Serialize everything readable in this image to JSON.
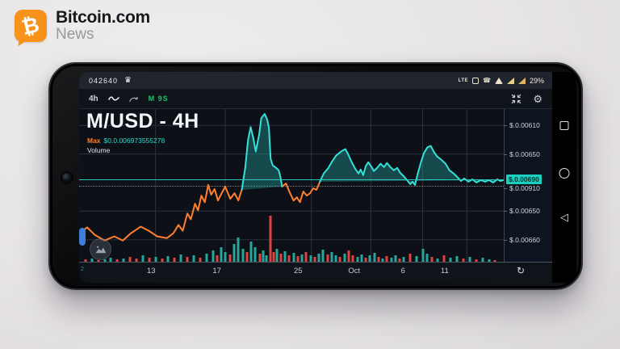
{
  "page": {
    "background": "#e9e6e8"
  },
  "brand": {
    "name": "Bitcoin.com",
    "subtitle": "News",
    "logo_glyph": "₿",
    "logo_color": "#f7931a"
  },
  "phone": {
    "status_bar": {
      "left_text": "042640",
      "crown_glyph": "♛",
      "lte_label": "LTE",
      "wifi_call_glyph": "☎",
      "battery": "29%"
    },
    "toolbar": {
      "interval_label": "4h",
      "indicator_label": "M 9S",
      "gear_glyph": "⚙"
    },
    "nav": {
      "back_glyph": "◁"
    }
  },
  "chart": {
    "title": "M/USD - 4H",
    "max_label": "Max",
    "max_value": "$0.0.006973555278",
    "volume_label": "Volume",
    "refresh_glyph": "↻"
  },
  "chart_data": {
    "type": "line",
    "title": "M/USD - 4H",
    "legend": [
      "Max $0.0.006973555278",
      "Volume"
    ],
    "y_axis_labels": [
      {
        "text": "$.0.00610",
        "y_pct": 10.7,
        "highlight": false
      },
      {
        "text": "$.0.00650",
        "y_pct": 29.4,
        "highlight": false
      },
      {
        "text": "$.0.00690",
        "y_pct": 46.0,
        "highlight": true
      },
      {
        "text": "$.0.00910",
        "y_pct": 51.8,
        "highlight": false
      },
      {
        "text": "$.0.00650",
        "y_pct": 66.8,
        "highlight": false
      },
      {
        "text": "$.0.00660",
        "y_pct": 85.6,
        "highlight": false
      }
    ],
    "x_axis_labels": [
      {
        "text": "2",
        "x_pct": 0.8,
        "dim": true
      },
      {
        "text": "13",
        "x_pct": 18.0,
        "dim": false
      },
      {
        "text": "17",
        "x_pct": 34.4,
        "dim": false
      },
      {
        "text": "25",
        "x_pct": 54.7,
        "dim": false
      },
      {
        "text": "Oct",
        "x_pct": 68.7,
        "dim": false
      },
      {
        "text": "6",
        "x_pct": 80.9,
        "dim": false
      },
      {
        "text": "11",
        "x_pct": 91.3,
        "dim": false
      }
    ],
    "current_price_line_y_pct": 46.0,
    "dotted_line_y_pct": 50.5,
    "grid": {
      "h_pct": [
        10.7,
        29.4,
        66.8,
        85.6
      ],
      "v_pct": [
        18.0,
        34.4,
        54.7,
        68.7,
        80.9,
        91.3
      ]
    },
    "colors": {
      "background": "#0d1117",
      "orange_line": "#ff7f2e",
      "teal_line": "#35e0d8",
      "teal_fill": "rgba(34,158,155,0.40)",
      "price_line": "#2cc9bd",
      "grid": "#2b3340",
      "volume_green": "#26a69a",
      "volume_red": "#e0433f",
      "highlight_bg": "#19cfc0"
    },
    "series": [
      {
        "name": "price-orange-left",
        "color": "#ff7f2e",
        "fill": false,
        "points": [
          [
            0,
            81.3
          ],
          [
            1.9,
            77.5
          ],
          [
            3.7,
            82.4
          ],
          [
            6,
            86.1
          ],
          [
            8.3,
            83.4
          ],
          [
            10.3,
            86.1
          ],
          [
            12.2,
            81.3
          ],
          [
            14.5,
            77
          ],
          [
            16.4,
            79.7
          ],
          [
            18.4,
            83.4
          ],
          [
            20.7,
            84.5
          ],
          [
            22.2,
            81.3
          ],
          [
            23.4,
            75.9
          ],
          [
            24.4,
            79.7
          ],
          [
            25.5,
            68.4
          ],
          [
            26.3,
            72.2
          ],
          [
            27.3,
            62
          ],
          [
            28,
            66.3
          ],
          [
            28.8,
            56.7
          ],
          [
            29.6,
            61
          ],
          [
            30.4,
            49.7
          ],
          [
            31.1,
            56.1
          ],
          [
            31.9,
            52.4
          ],
          [
            32.7,
            59.9
          ],
          [
            33.7,
            54.5
          ],
          [
            34.4,
            50.8
          ],
          [
            35.6,
            58.8
          ],
          [
            36.6,
            55.1
          ],
          [
            37.5,
            59.9
          ],
          [
            38.3,
            52.9
          ]
        ]
      },
      {
        "name": "price-orange-mid",
        "color": "#ff7f2e",
        "fill": false,
        "points": [
          [
            47.8,
            50.8
          ],
          [
            48.7,
            48.7
          ],
          [
            49.5,
            54
          ],
          [
            50.5,
            59.9
          ],
          [
            51.3,
            57.8
          ],
          [
            52,
            61
          ],
          [
            52.8,
            54
          ],
          [
            53.6,
            56.7
          ],
          [
            54.4,
            55.1
          ],
          [
            55.1,
            51.9
          ],
          [
            55.9,
            52.9
          ],
          [
            56.7,
            47.6
          ]
        ]
      },
      {
        "name": "price-teal-spike",
        "color": "#35e0d8",
        "fill": true,
        "points": [
          [
            38.3,
            52.9
          ],
          [
            39.1,
            39
          ],
          [
            39.8,
            19.8
          ],
          [
            40.4,
            11.8
          ],
          [
            41,
            18.7
          ],
          [
            41.6,
            27.8
          ],
          [
            42.4,
            16.6
          ],
          [
            42.9,
            5.9
          ],
          [
            43.7,
            3.2
          ],
          [
            44.3,
            7
          ],
          [
            44.7,
            12.3
          ],
          [
            45.1,
            32.6
          ],
          [
            45.6,
            36.9
          ],
          [
            46.4,
            38.5
          ],
          [
            47,
            40.1
          ],
          [
            47.4,
            44.4
          ],
          [
            47.8,
            50.8
          ]
        ]
      },
      {
        "name": "price-teal-main",
        "color": "#35e0d8",
        "fill": true,
        "points": [
          [
            56.7,
            47.6
          ],
          [
            57.6,
            42.2
          ],
          [
            58.6,
            39
          ],
          [
            59.6,
            34.2
          ],
          [
            60.5,
            30.5
          ],
          [
            61.7,
            27.8
          ],
          [
            62.7,
            26.2
          ],
          [
            63.4,
            29.9
          ],
          [
            64.2,
            34.8
          ],
          [
            65,
            39
          ],
          [
            65.8,
            42.2
          ],
          [
            66.3,
            39.6
          ],
          [
            66.9,
            43.3
          ],
          [
            67.5,
            37.4
          ],
          [
            68.1,
            34.8
          ],
          [
            68.9,
            38
          ],
          [
            69.4,
            40.6
          ],
          [
            70.2,
            38.5
          ],
          [
            71,
            35.8
          ],
          [
            71.8,
            38
          ],
          [
            72.5,
            35.3
          ],
          [
            73.3,
            38
          ],
          [
            74.1,
            40.1
          ],
          [
            74.9,
            38.5
          ],
          [
            75.6,
            41.7
          ],
          [
            76.4,
            43.9
          ],
          [
            77.2,
            46.5
          ],
          [
            78,
            49.2
          ],
          [
            78.5,
            47.6
          ],
          [
            79.1,
            49.7
          ],
          [
            79.7,
            42.8
          ],
          [
            80.5,
            34.8
          ],
          [
            81.2,
            28.9
          ],
          [
            82,
            25.1
          ],
          [
            82.8,
            24.1
          ],
          [
            83.6,
            28.3
          ],
          [
            84.3,
            31
          ],
          [
            85.3,
            33.2
          ],
          [
            86.3,
            35.8
          ],
          [
            87.2,
            40.1
          ],
          [
            88.2,
            42.2
          ],
          [
            89.2,
            44.9
          ],
          [
            89.9,
            47.1
          ],
          [
            90.7,
            45.5
          ],
          [
            91.7,
            47.6
          ],
          [
            92.6,
            46
          ],
          [
            93.6,
            48.1
          ],
          [
            94.6,
            46.5
          ],
          [
            95.6,
            47.6
          ],
          [
            96.5,
            46.5
          ],
          [
            97.5,
            48.1
          ],
          [
            98.5,
            46
          ],
          [
            99.2,
            47.1
          ],
          [
            100,
            46.5
          ]
        ]
      }
    ],
    "volume_bars": [
      [
        1.5,
        3,
        "r"
      ],
      [
        3,
        4,
        "g"
      ],
      [
        4.5,
        2,
        "r"
      ],
      [
        6,
        3,
        "g"
      ],
      [
        7.5,
        5,
        "g"
      ],
      [
        9,
        3,
        "r"
      ],
      [
        10.5,
        4,
        "g"
      ],
      [
        12,
        6,
        "r"
      ],
      [
        13.5,
        4,
        "r"
      ],
      [
        15,
        8,
        "g"
      ],
      [
        16.5,
        5,
        "r"
      ],
      [
        18,
        6,
        "g"
      ],
      [
        19.5,
        4,
        "r"
      ],
      [
        21,
        7,
        "g"
      ],
      [
        22.5,
        5,
        "r"
      ],
      [
        24,
        9,
        "g"
      ],
      [
        25.5,
        6,
        "r"
      ],
      [
        27,
        8,
        "g"
      ],
      [
        28.5,
        5,
        "r"
      ],
      [
        30,
        10,
        "g"
      ],
      [
        31.5,
        14,
        "g"
      ],
      [
        32.5,
        8,
        "r"
      ],
      [
        33.5,
        18,
        "g"
      ],
      [
        34.5,
        12,
        "g"
      ],
      [
        35.5,
        9,
        "r"
      ],
      [
        36.5,
        22,
        "g"
      ],
      [
        37.5,
        30,
        "g"
      ],
      [
        38.5,
        16,
        "g"
      ],
      [
        39.5,
        12,
        "r"
      ],
      [
        40.5,
        25,
        "g"
      ],
      [
        41.5,
        18,
        "g"
      ],
      [
        42.5,
        10,
        "r"
      ],
      [
        43.4,
        14,
        "g"
      ],
      [
        44.2,
        8,
        "g"
      ],
      [
        45,
        57,
        "r"
      ],
      [
        45.8,
        12,
        "r"
      ],
      [
        46.6,
        16,
        "g"
      ],
      [
        47.5,
        10,
        "r"
      ],
      [
        48.5,
        13,
        "g"
      ],
      [
        49.5,
        8,
        "r"
      ],
      [
        50.5,
        11,
        "g"
      ],
      [
        51.5,
        7,
        "r"
      ],
      [
        52.5,
        9,
        "g"
      ],
      [
        53.5,
        12,
        "r"
      ],
      [
        54.5,
        8,
        "g"
      ],
      [
        55.5,
        6,
        "r"
      ],
      [
        56.5,
        10,
        "g"
      ],
      [
        57.5,
        15,
        "g"
      ],
      [
        58.5,
        9,
        "r"
      ],
      [
        59.5,
        12,
        "g"
      ],
      [
        60.5,
        8,
        "g"
      ],
      [
        61.5,
        6,
        "r"
      ],
      [
        62.5,
        10,
        "g"
      ],
      [
        63.5,
        14,
        "r"
      ],
      [
        64.5,
        8,
        "r"
      ],
      [
        65.5,
        6,
        "g"
      ],
      [
        66.5,
        9,
        "g"
      ],
      [
        67.5,
        5,
        "r"
      ],
      [
        68.5,
        8,
        "g"
      ],
      [
        69.5,
        11,
        "g"
      ],
      [
        70.5,
        6,
        "r"
      ],
      [
        71.5,
        4,
        "g"
      ],
      [
        72.5,
        7,
        "r"
      ],
      [
        73.5,
        5,
        "g"
      ],
      [
        74.5,
        8,
        "g"
      ],
      [
        75.5,
        4,
        "r"
      ],
      [
        76.5,
        6,
        "g"
      ],
      [
        78,
        10,
        "r"
      ],
      [
        79.5,
        7,
        "g"
      ],
      [
        81,
        16,
        "g"
      ],
      [
        82,
        10,
        "g"
      ],
      [
        83,
        6,
        "r"
      ],
      [
        84.5,
        4,
        "g"
      ],
      [
        86,
        8,
        "r"
      ],
      [
        87.5,
        5,
        "g"
      ],
      [
        89,
        7,
        "g"
      ],
      [
        90.5,
        4,
        "r"
      ],
      [
        92,
        6,
        "g"
      ],
      [
        93.5,
        3,
        "r"
      ],
      [
        95,
        5,
        "g"
      ],
      [
        96.5,
        3,
        "g"
      ],
      [
        98,
        2,
        "r"
      ]
    ]
  }
}
